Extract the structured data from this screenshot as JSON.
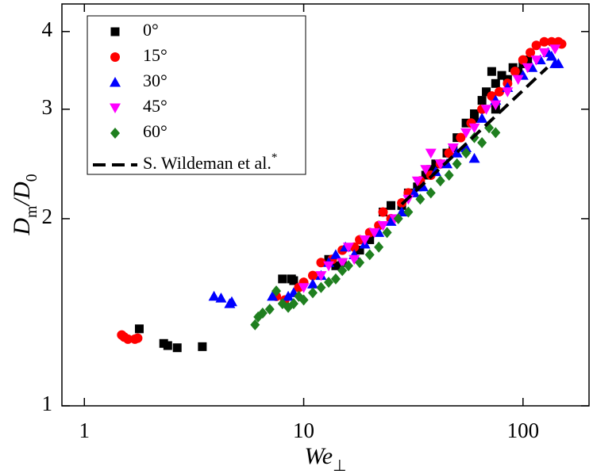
{
  "chart_data": {
    "type": "scatter",
    "xlabel": [
      {
        "text": "We",
        "italic": true
      },
      {
        "text": "⊥",
        "sub": true
      }
    ],
    "ylabel": [
      {
        "text": "D",
        "italic": true
      },
      {
        "text": "m",
        "sub": true
      },
      {
        "text": "/",
        "italic": true
      },
      {
        "text": "D",
        "italic": true
      },
      {
        "text": "0",
        "sub": true
      }
    ],
    "xscale": "log",
    "yscale": "log",
    "xlim": [
      0.79,
      200
    ],
    "ylim": [
      1,
      4.43
    ],
    "xticks": [
      1,
      10,
      100
    ],
    "yticks": [
      1,
      2,
      3,
      4
    ],
    "legend": "upper left",
    "series": [
      {
        "name": "0°",
        "marker": "square",
        "color": "#000000",
        "x": [
          1.78,
          2.3,
          2.4,
          2.65,
          3.45,
          8,
          8.8,
          9,
          13,
          14,
          15,
          18,
          20,
          23,
          25,
          28,
          30,
          33,
          36,
          40,
          45,
          50,
          55,
          60,
          65,
          68,
          72,
          75,
          80,
          85,
          90,
          95,
          100,
          105,
          75,
          60,
          48,
          38
        ],
        "values": [
          1.33,
          1.26,
          1.25,
          1.24,
          1.245,
          1.6,
          1.6,
          1.59,
          1.72,
          1.68,
          1.7,
          1.78,
          1.85,
          2.05,
          2.1,
          2.1,
          2.2,
          2.25,
          2.35,
          2.45,
          2.55,
          2.7,
          2.85,
          2.95,
          3.1,
          3.2,
          3.45,
          3.3,
          3.4,
          3.35,
          3.5,
          3.45,
          3.55,
          3.6,
          3.0,
          2.9,
          2.6,
          2.4
        ]
      },
      {
        "name": "15°",
        "marker": "circle",
        "color": "#ff0000",
        "x": [
          1.48,
          1.52,
          1.58,
          1.7,
          1.75,
          7.5,
          8.2,
          9.5,
          10,
          11,
          12,
          13.5,
          15,
          17,
          18,
          20,
          22,
          23,
          25,
          28,
          30,
          34,
          38,
          42,
          46,
          52,
          58,
          65,
          72,
          78,
          85,
          92,
          100,
          108,
          115,
          125,
          135,
          145,
          150
        ],
        "values": [
          1.3,
          1.29,
          1.28,
          1.28,
          1.285,
          1.5,
          1.48,
          1.55,
          1.58,
          1.62,
          1.7,
          1.72,
          1.78,
          1.8,
          1.85,
          1.9,
          1.95,
          2.05,
          2.0,
          2.12,
          2.2,
          2.3,
          2.35,
          2.45,
          2.55,
          2.7,
          2.85,
          3.0,
          3.15,
          3.2,
          3.3,
          3.45,
          3.6,
          3.7,
          3.8,
          3.85,
          3.85,
          3.85,
          3.82
        ]
      },
      {
        "name": "30°",
        "marker": "triangle-up",
        "color": "#0000ff",
        "x": [
          3.9,
          4.2,
          4.6,
          4.7,
          7.2,
          8.5,
          9,
          11,
          12,
          13,
          14,
          15.5,
          17,
          19,
          22,
          25,
          28,
          32,
          35,
          40,
          45,
          50,
          55,
          60,
          65,
          75,
          85,
          100,
          110,
          120,
          130,
          140,
          145,
          135
        ],
        "values": [
          1.5,
          1.49,
          1.46,
          1.47,
          1.5,
          1.5,
          1.52,
          1.57,
          1.62,
          1.7,
          1.75,
          1.8,
          1.75,
          1.82,
          1.9,
          1.98,
          2.05,
          2.2,
          2.25,
          2.38,
          2.45,
          2.55,
          2.6,
          2.5,
          2.9,
          3.1,
          3.25,
          3.4,
          3.5,
          3.6,
          3.7,
          3.55,
          3.55,
          3.65
        ]
      },
      {
        "name": "45°",
        "marker": "triangle-down",
        "color": "#ff00ff",
        "x": [
          10,
          12,
          13,
          15,
          16,
          17,
          19,
          21,
          23,
          26,
          30,
          33,
          36,
          38,
          42,
          48,
          55,
          60,
          68,
          75,
          85,
          95,
          105,
          115,
          125,
          140
        ],
        "values": [
          1.55,
          1.62,
          1.68,
          1.7,
          1.8,
          1.72,
          1.85,
          1.9,
          1.95,
          2.0,
          2.15,
          2.3,
          2.4,
          2.55,
          2.45,
          2.6,
          2.75,
          2.8,
          3.0,
          3.05,
          3.2,
          3.35,
          3.5,
          3.6,
          3.7,
          3.75
        ]
      },
      {
        "name": "60°",
        "marker": "diamond",
        "color": "#1f7f1f",
        "x": [
          6,
          6.2,
          6.5,
          7,
          7.5,
          8,
          8.5,
          9,
          9.5,
          10,
          11,
          12,
          13,
          14,
          15,
          16,
          18,
          20,
          22,
          24,
          27,
          30,
          34,
          38,
          42,
          46,
          50,
          55,
          60,
          65,
          70,
          75
        ],
        "values": [
          1.35,
          1.39,
          1.41,
          1.43,
          1.53,
          1.46,
          1.44,
          1.46,
          1.5,
          1.48,
          1.52,
          1.55,
          1.58,
          1.6,
          1.65,
          1.68,
          1.7,
          1.75,
          1.8,
          1.9,
          2.0,
          2.05,
          2.15,
          2.2,
          2.3,
          2.35,
          2.45,
          2.55,
          2.7,
          2.65,
          2.8,
          2.75
        ]
      },
      {
        "name": "S. Wildeman et al.",
        "name_sup": "*",
        "marker": "dashed-line",
        "color": "#000000",
        "x": [
          28,
          129
        ],
        "values": [
          2.11,
          3.5
        ]
      }
    ]
  }
}
